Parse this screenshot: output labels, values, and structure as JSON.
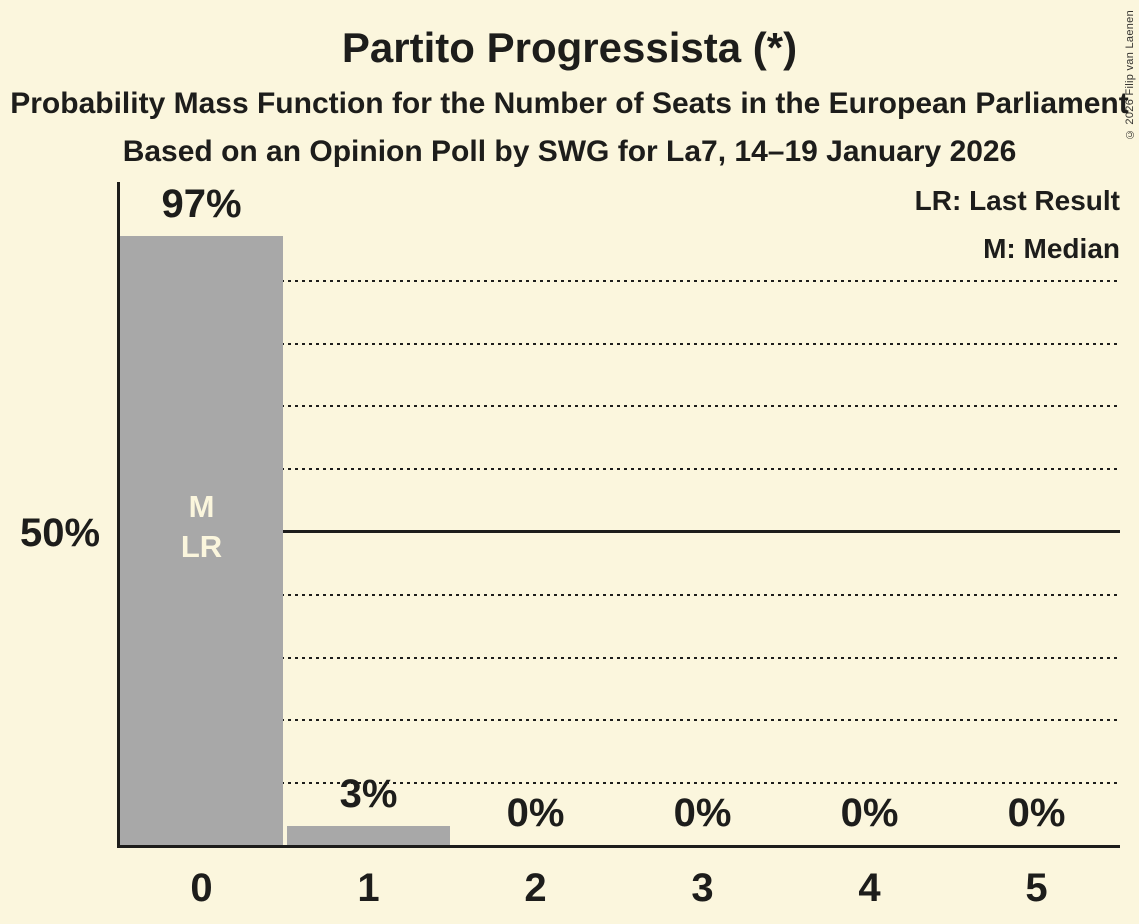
{
  "page": {
    "copyright": "© 2026 Filip van Laenen"
  },
  "header": {
    "title": "Partito Progressista (*)",
    "subtitle": "Probability Mass Function for the Number of Seats in the European Parliament",
    "subsubtitle": "Based on an Opinion Poll by SWG for La7, 14–19 January 2026"
  },
  "legend": {
    "lr": "LR: Last Result",
    "m": "M: Median"
  },
  "chart_data": {
    "type": "bar",
    "title": "Partito Progressista (*)",
    "subtitle": "Probability Mass Function for the Number of Seats in the European Parliament",
    "poll_info": "Based on an Opinion Poll by SWG for La7, 14–19 January 2026",
    "categories": [
      "0",
      "1",
      "2",
      "3",
      "4",
      "5"
    ],
    "values": [
      97,
      3,
      0,
      0,
      0,
      0
    ],
    "value_labels": [
      "97%",
      "3%",
      "0%",
      "0%",
      "0%",
      "0%"
    ],
    "xlabel": "",
    "ylabel": "",
    "y_axis": {
      "label_text": "50%",
      "label_value": 50,
      "solid_line_at": 50,
      "dotted_lines": [
        10,
        20,
        30,
        40,
        60,
        70,
        80,
        90
      ],
      "range": [
        0,
        106
      ]
    },
    "annotations": {
      "bar_index": 0,
      "lines": [
        "M",
        "LR"
      ],
      "meaning": {
        "M": "Median",
        "LR": "Last Result"
      }
    },
    "legend": [
      {
        "abbr": "LR",
        "label": "LR: Last Result"
      },
      {
        "abbr": "M",
        "label": "M: Median"
      }
    ],
    "legend_position": "top-right",
    "colors": {
      "background": "#FBF6DD",
      "bar": "#A8A8A8",
      "text": "#1D1D1B",
      "bar_annotation_text": "#FBF6DD"
    }
  }
}
